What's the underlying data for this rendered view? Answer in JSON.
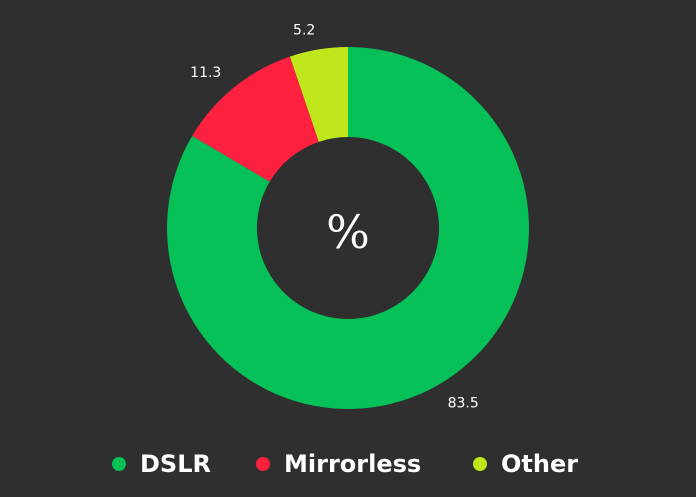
{
  "chart_data": {
    "type": "pie",
    "donut": true,
    "center_label": "%",
    "categories": [
      "DSLR",
      "Mirrorless",
      "Other"
    ],
    "values": [
      83.5,
      11.3,
      5.2
    ],
    "colors": [
      "#05c157",
      "#fd213f",
      "#bfe71c"
    ],
    "value_labels": [
      "83.5",
      "11.3",
      "5.2"
    ],
    "legend_position": "bottom"
  },
  "legend": {
    "items": [
      {
        "label": "DSLR",
        "color": "#05c157"
      },
      {
        "label": "Mirrorless",
        "color": "#fd213f"
      },
      {
        "label": "Other",
        "color": "#bfe71c"
      }
    ]
  },
  "theme": {
    "background": "#2f2f2f",
    "text": "#ffffff"
  }
}
